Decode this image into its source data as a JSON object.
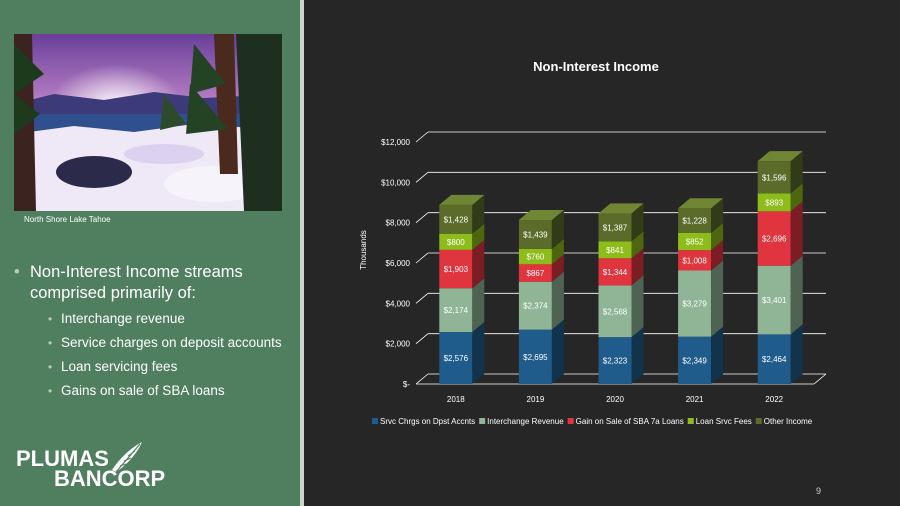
{
  "left_panel": {
    "photo_caption": "North Shore Lake Tahoe",
    "bullet_main": "Non-Interest Income streams comprised primarily of:",
    "sub_bullets": [
      "Interchange revenue",
      "Service charges on deposit accounts",
      "Loan servicing fees",
      "Gains on sale of SBA loans"
    ],
    "logo_line1": "PLUMAS",
    "logo_line2": "BANCORP"
  },
  "slide_number": "9",
  "colors": {
    "left_panel": "#4f7f5f",
    "background": "#262626",
    "srvc_chrgs": "#1f5c8b",
    "interchange": "#8fb496",
    "gain_sba": "#e0343e",
    "loan_srvc": "#8ebc1a",
    "other": "#5a6b2a"
  },
  "chart_data": {
    "type": "bar",
    "stacked": true,
    "title": "Non-Interest Income",
    "ylabel": "Thousands",
    "xlabel": "",
    "categories": [
      "2018",
      "2019",
      "2020",
      "2021",
      "2022"
    ],
    "ylim": [
      0,
      12000
    ],
    "yticks": [
      0,
      2000,
      4000,
      6000,
      8000,
      10000,
      12000
    ],
    "ytick_labels": [
      "$-",
      "$2,000",
      "$4,000",
      "$6,000",
      "$8,000",
      "$10,000",
      "$12,000"
    ],
    "legend_position": "bottom",
    "series": [
      {
        "name": "Srvc Chrgs on Dpst Accnts",
        "values": [
          2576,
          2695,
          2323,
          2349,
          2464
        ],
        "labels": [
          "$2,576",
          "$2,695",
          "$2,323",
          "$2,349",
          "$2,464"
        ]
      },
      {
        "name": "Interchange Revenue",
        "values": [
          2174,
          2374,
          2568,
          3279,
          3401
        ],
        "labels": [
          "$2,174",
          "$2,374",
          "$2,568",
          "$3,279",
          "$3,401"
        ]
      },
      {
        "name": "Gain on Sale of SBA 7a Loans",
        "values": [
          1903,
          867,
          1344,
          1008,
          2696
        ],
        "labels": [
          "$1,903",
          "$867",
          "$1,344",
          "$1,008",
          "$2,696"
        ]
      },
      {
        "name": "Loan Srvc Fees",
        "values": [
          800,
          760,
          841,
          852,
          893
        ],
        "labels": [
          "$800",
          "$760",
          "$841",
          "$852",
          "$893"
        ]
      },
      {
        "name": "Other Income",
        "values": [
          1428,
          1439,
          1387,
          1228,
          1596
        ],
        "labels": [
          "$1,428",
          "$1,439",
          "$1,387",
          "$1,228",
          "$1,596"
        ]
      }
    ]
  }
}
